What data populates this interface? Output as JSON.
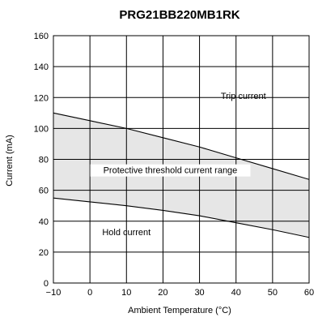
{
  "chart_data": {
    "type": "line",
    "title": "PRG21BB220MB1RK",
    "xlabel": "Ambient Temperature (°C)",
    "ylabel": "Current (mA)",
    "xlim": [
      -10,
      60
    ],
    "ylim": [
      0,
      160
    ],
    "x_ticks": [
      "−10",
      "0",
      "10",
      "20",
      "30",
      "40",
      "50",
      "60"
    ],
    "x_tick_values": [
      -10,
      0,
      10,
      20,
      30,
      40,
      50,
      60
    ],
    "y_ticks": [
      "0",
      "20",
      "40",
      "60",
      "80",
      "100",
      "120",
      "140",
      "160"
    ],
    "y_tick_values": [
      0,
      20,
      40,
      60,
      80,
      100,
      120,
      140,
      160
    ],
    "grid": true,
    "series": [
      {
        "name": "Trip current",
        "x": [
          -10,
          0,
          10,
          20,
          30,
          40,
          50,
          60
        ],
        "y": [
          110,
          105,
          100,
          94,
          88,
          81,
          74,
          67
        ]
      },
      {
        "name": "Hold current",
        "x": [
          -10,
          0,
          10,
          20,
          30,
          40,
          50,
          60
        ],
        "y": [
          55,
          52.5,
          50,
          47,
          43.5,
          39,
          34.5,
          29.5
        ]
      }
    ],
    "shaded_region": {
      "label": "Protective threshold current range",
      "between": [
        "Trip current",
        "Hold current"
      ],
      "color": "#e6e6e6"
    },
    "annotations": [
      {
        "text": "Trip current",
        "x": 42,
        "y": 119
      },
      {
        "text": "Protective threshold current range",
        "x": 22,
        "y": 71
      },
      {
        "text": "Hold current",
        "x": 10,
        "y": 31
      }
    ]
  }
}
